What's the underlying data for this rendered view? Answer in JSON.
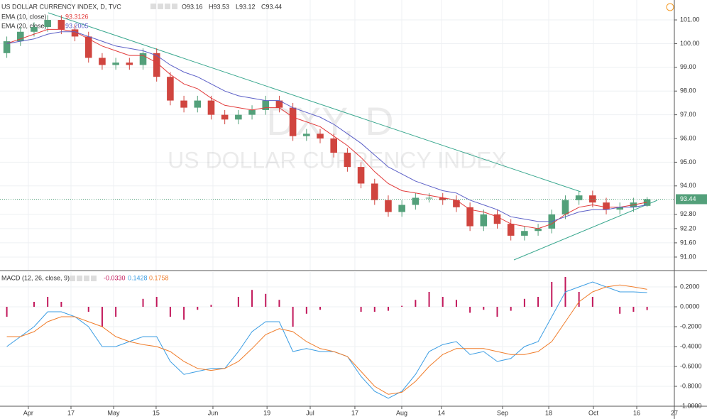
{
  "chart_data": [
    {
      "type": "candlestick",
      "title": "US DOLLAR CURRENCY INDEX, D, TVC",
      "ohlc_labels": [
        "O93.16",
        "H93.53",
        "L93.12",
        "C93.44"
      ],
      "watermark": [
        "DXY, D",
        "US DOLLAR CURRENCY INDEX"
      ],
      "last_price_label": "93.44",
      "up_color": "#53a07a",
      "down_color": "#d0453f",
      "x": [
        0,
        1,
        2,
        3,
        4,
        5,
        6,
        7,
        8,
        9,
        10,
        11,
        12,
        13,
        14,
        15,
        16,
        17,
        18,
        19,
        20,
        21,
        22,
        23,
        24,
        25,
        26,
        27,
        28,
        29,
        30,
        31,
        32,
        33,
        34,
        35,
        36,
        37,
        38,
        39,
        40,
        41,
        42,
        43,
        44,
        45,
        46,
        47
      ],
      "open": [
        99.6,
        100.1,
        100.5,
        100.7,
        101.0,
        100.6,
        100.3,
        99.4,
        99.1,
        99.2,
        99.1,
        99.6,
        98.6,
        97.6,
        97.3,
        97.6,
        97.0,
        96.8,
        97.0,
        97.2,
        97.6,
        97.3,
        96.1,
        96.2,
        96.0,
        95.4,
        94.8,
        94.1,
        93.4,
        92.9,
        93.2,
        93.5,
        93.5,
        93.4,
        93.1,
        92.3,
        92.8,
        92.4,
        91.9,
        92.1,
        92.2,
        92.8,
        93.4,
        93.6,
        93.3,
        93.0,
        93.1,
        93.16
      ],
      "high": [
        100.3,
        100.7,
        100.9,
        101.2,
        101.2,
        100.8,
        100.5,
        99.6,
        99.4,
        99.4,
        99.8,
        99.8,
        98.8,
        97.8,
        97.8,
        97.8,
        97.2,
        97.2,
        97.4,
        97.8,
        97.8,
        97.5,
        96.4,
        96.4,
        96.2,
        95.6,
        95.0,
        94.3,
        93.6,
        93.4,
        93.7,
        93.7,
        93.7,
        93.6,
        93.3,
        93.0,
        93.0,
        92.6,
        92.3,
        92.4,
        93.0,
        93.6,
        93.8,
        93.8,
        93.5,
        93.3,
        93.5,
        93.53
      ],
      "low": [
        99.4,
        99.9,
        100.3,
        100.5,
        100.4,
        100.1,
        99.2,
        98.9,
        98.9,
        98.9,
        98.9,
        98.4,
        97.4,
        97.1,
        97.1,
        96.8,
        96.6,
        96.6,
        96.8,
        97.0,
        97.1,
        95.9,
        95.9,
        95.8,
        95.2,
        94.6,
        93.9,
        93.2,
        92.7,
        92.7,
        93.0,
        93.3,
        93.2,
        92.9,
        92.1,
        92.1,
        92.2,
        91.7,
        91.7,
        91.9,
        92.0,
        92.6,
        93.2,
        93.1,
        92.8,
        92.8,
        92.9,
        93.12
      ],
      "close": [
        100.1,
        100.5,
        100.7,
        101.0,
        100.6,
        100.3,
        99.4,
        99.1,
        99.2,
        99.1,
        99.6,
        98.6,
        97.6,
        97.3,
        97.6,
        97.0,
        96.8,
        97.0,
        97.2,
        97.6,
        97.3,
        96.1,
        96.2,
        96.0,
        95.4,
        94.8,
        94.1,
        93.4,
        92.9,
        93.2,
        93.5,
        93.5,
        93.4,
        93.1,
        92.3,
        92.8,
        92.4,
        91.9,
        92.1,
        92.2,
        92.8,
        93.4,
        93.6,
        93.3,
        93.0,
        93.1,
        93.3,
        93.44
      ],
      "series": [
        {
          "name": "EMA (10, close)",
          "value_label": "93.3126",
          "color": "#e23a3a",
          "values": [
            100.0,
            100.2,
            100.4,
            100.6,
            100.6,
            100.5,
            100.2,
            99.9,
            99.7,
            99.5,
            99.5,
            99.2,
            98.7,
            98.3,
            98.1,
            97.7,
            97.4,
            97.3,
            97.2,
            97.3,
            97.3,
            96.9,
            96.7,
            96.5,
            96.1,
            95.7,
            95.2,
            94.6,
            94.1,
            93.8,
            93.7,
            93.6,
            93.5,
            93.4,
            93.0,
            92.9,
            92.7,
            92.4,
            92.3,
            92.2,
            92.4,
            92.8,
            93.1,
            93.2,
            93.1,
            93.1,
            93.2,
            93.3126
          ]
        },
        {
          "name": "EMA (20, close)",
          "value_label": "93.2005",
          "color": "#5b5fc7",
          "values": [
            100.0,
            100.1,
            100.2,
            100.4,
            100.5,
            100.5,
            100.3,
            100.1,
            99.9,
            99.8,
            99.7,
            99.5,
            99.1,
            98.8,
            98.6,
            98.3,
            98.0,
            97.8,
            97.7,
            97.6,
            97.6,
            97.3,
            97.1,
            96.9,
            96.6,
            96.2,
            95.8,
            95.3,
            94.8,
            94.5,
            94.2,
            94.0,
            93.8,
            93.7,
            93.4,
            93.2,
            93.0,
            92.7,
            92.6,
            92.5,
            92.5,
            92.7,
            92.9,
            93.0,
            93.0,
            93.1,
            93.1,
            93.2005
          ]
        }
      ],
      "xlim": [
        -0.5,
        49
      ],
      "ylim": [
        90.46,
        101.84
      ],
      "yticks": [
        {
          "value": 101,
          "label": "101.00"
        },
        {
          "value": 100,
          "label": "100.00"
        },
        {
          "value": 99,
          "label": "99.00"
        },
        {
          "value": 98,
          "label": "98.00"
        },
        {
          "value": 97,
          "label": "97.00"
        },
        {
          "value": 96,
          "label": "96.00"
        },
        {
          "value": 95,
          "label": "95.00"
        },
        {
          "value": 94,
          "label": "94.00"
        },
        {
          "value": 92.8,
          "label": "92.80"
        },
        {
          "value": 92.2,
          "label": "92.20"
        },
        {
          "value": 91.6,
          "label": "91.60"
        },
        {
          "value": 91,
          "label": "91.00"
        }
      ],
      "grid": true
    },
    {
      "type": "macd",
      "title": "MACD (12, 26, close, 9)",
      "x": [
        0,
        1,
        2,
        3,
        4,
        5,
        6,
        7,
        8,
        9,
        10,
        11,
        12,
        13,
        14,
        15,
        16,
        17,
        18,
        19,
        20,
        21,
        22,
        23,
        24,
        25,
        26,
        27,
        28,
        29,
        30,
        31,
        32,
        33,
        34,
        35,
        36,
        37,
        38,
        39,
        40,
        41,
        42,
        43,
        44,
        45,
        46,
        47
      ],
      "histogram": {
        "value_label": "-0.0330",
        "color": "#c2185b",
        "values": [
          -0.1,
          0,
          0.05,
          0.1,
          0.05,
          0,
          -0.05,
          -0.2,
          -0.1,
          0,
          0.08,
          0.1,
          -0.1,
          -0.13,
          -0.03,
          0.02,
          0,
          0.1,
          0.17,
          0.13,
          0.07,
          -0.2,
          -0.07,
          -0.03,
          0,
          0,
          -0.05,
          -0.05,
          -0.04,
          0.01,
          0.07,
          0.15,
          0.1,
          0.07,
          -0.06,
          -0.03,
          -0.1,
          -0.04,
          0.08,
          0.1,
          0.25,
          0.3,
          0.15,
          0.1,
          0,
          -0.07,
          -0.05,
          -0.033
        ]
      },
      "series": [
        {
          "value_label": "0.1428",
          "color": "#3b9de3",
          "values": [
            -0.4,
            -0.3,
            -0.2,
            -0.05,
            -0.05,
            -0.1,
            -0.2,
            -0.4,
            -0.4,
            -0.35,
            -0.3,
            -0.3,
            -0.55,
            -0.68,
            -0.65,
            -0.62,
            -0.62,
            -0.45,
            -0.25,
            -0.15,
            -0.15,
            -0.45,
            -0.42,
            -0.45,
            -0.45,
            -0.5,
            -0.7,
            -0.85,
            -0.92,
            -0.85,
            -0.68,
            -0.45,
            -0.38,
            -0.35,
            -0.48,
            -0.45,
            -0.55,
            -0.52,
            -0.4,
            -0.35,
            -0.1,
            0.15,
            0.2,
            0.25,
            0.2,
            0.15,
            0.15,
            0.1428
          ]
        },
        {
          "value_label": "0.1758",
          "color": "#f07d2b",
          "values": [
            -0.3,
            -0.3,
            -0.25,
            -0.15,
            -0.1,
            -0.1,
            -0.15,
            -0.2,
            -0.3,
            -0.35,
            -0.38,
            -0.4,
            -0.45,
            -0.55,
            -0.62,
            -0.64,
            -0.62,
            -0.55,
            -0.42,
            -0.28,
            -0.22,
            -0.25,
            -0.35,
            -0.42,
            -0.45,
            -0.5,
            -0.65,
            -0.8,
            -0.88,
            -0.86,
            -0.75,
            -0.6,
            -0.48,
            -0.42,
            -0.42,
            -0.42,
            -0.45,
            -0.48,
            -0.48,
            -0.45,
            -0.35,
            -0.15,
            0.05,
            0.15,
            0.2,
            0.22,
            0.2,
            0.1758
          ]
        }
      ],
      "xlim": [
        -0.5,
        49
      ],
      "ylim": [
        -1.0,
        0.35
      ],
      "yticks": [
        {
          "value": 0.2,
          "label": "0.2000"
        },
        {
          "value": 0,
          "label": "0.0000"
        },
        {
          "value": -0.2,
          "label": "-0.2000"
        },
        {
          "value": -0.4,
          "label": "-0.4000"
        },
        {
          "value": -0.6,
          "label": "-0.6000"
        },
        {
          "value": -0.8,
          "label": "-0.8000"
        },
        {
          "value": -1.0,
          "label": "-1.0000"
        }
      ],
      "xticks": [
        {
          "value": 1.58,
          "label": "Apr"
        },
        {
          "value": 4.71,
          "label": "17"
        },
        {
          "value": 7.84,
          "label": "May"
        },
        {
          "value": 10.96,
          "label": "15"
        },
        {
          "value": 15.13,
          "label": "Jun"
        },
        {
          "value": 19.1,
          "label": "19"
        },
        {
          "value": 22.27,
          "label": "Jul"
        },
        {
          "value": 25.55,
          "label": "17"
        },
        {
          "value": 28.99,
          "label": "Aug"
        },
        {
          "value": 31.9,
          "label": "14"
        },
        {
          "value": 36.39,
          "label": "Sep"
        },
        {
          "value": 39.78,
          "label": "18"
        },
        {
          "value": 43.06,
          "label": "Oct"
        },
        {
          "value": 46.24,
          "label": "16"
        },
        {
          "value": 49.0,
          "label": "27"
        }
      ],
      "grid": true
    }
  ]
}
